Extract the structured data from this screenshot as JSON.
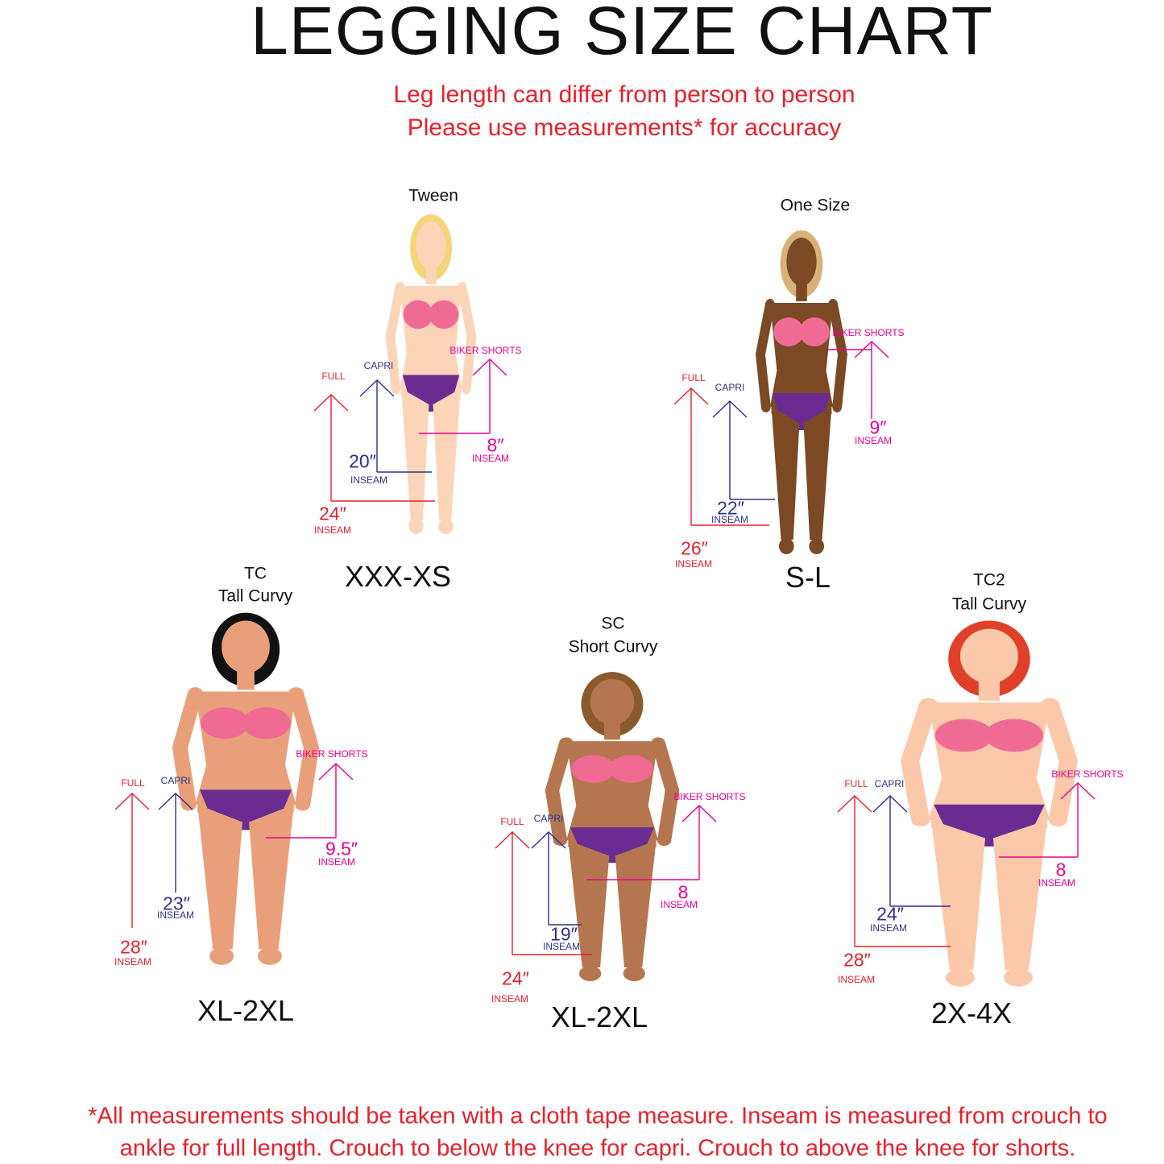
{
  "title": "LEGGING  SIZE CHART",
  "subtitle_lines": [
    "Leg length can differ from person to person",
    "Please use measurements* for accuracy"
  ],
  "colors": {
    "full": "#e8202a",
    "capri": "#2e3192",
    "biker_shorts": "#ec008c",
    "bra": "#f06b94",
    "panty": "#6a2c91"
  },
  "figures": [
    {
      "label_lines": [
        "Tween"
      ],
      "size": "XXX-XS",
      "skin": "#fcd5b8",
      "hair": "#f4d57a",
      "full": {
        "label": "FULL",
        "value": "24″",
        "unit": "INSEAM"
      },
      "capri": {
        "label": "CAPRI",
        "value": "20″",
        "unit": "INSEAM"
      },
      "biker": {
        "label": "BIKER SHORTS",
        "value": "8″",
        "unit": "INSEAM"
      }
    },
    {
      "label_lines": [
        "One Size"
      ],
      "size": "S-L",
      "skin": "#7b4a25",
      "hair": "#d9b07a",
      "full": {
        "label": "FULL",
        "value": "26″",
        "unit": "INSEAM"
      },
      "capri": {
        "label": "CAPRI",
        "value": "22″",
        "unit": "INSEAM"
      },
      "biker": {
        "label": "BIKER SHORTS",
        "value": "9″",
        "unit": "INSEAM"
      }
    },
    {
      "label_lines": [
        "TC",
        "Tall Curvy"
      ],
      "size": "XL-2XL",
      "skin": "#e9a07a",
      "hair": "#111111",
      "full": {
        "label": "FULL",
        "value": "28″",
        "unit": "INSEAM"
      },
      "capri": {
        "label": "CAPRI",
        "value": "23″",
        "unit": "INSEAM"
      },
      "biker": {
        "label": "BIKER SHORTS",
        "value": "9.5″",
        "unit": "INSEAM"
      }
    },
    {
      "label_lines": [
        "SC",
        "Short Curvy"
      ],
      "size": "XL-2XL",
      "skin": "#b5764f",
      "hair": "#8a5a2c",
      "full": {
        "label": "FULL",
        "value": "24″",
        "unit": "INSEAM"
      },
      "capri": {
        "label": "CAPRI",
        "value": "19″",
        "unit": "INSEAM"
      },
      "biker": {
        "label": "BIKER SHORTS",
        "value": "8",
        "unit": "INSEAM"
      }
    },
    {
      "label_lines": [
        "TC2",
        "Tall Curvy"
      ],
      "size": "2X-4X",
      "skin": "#fcc8aa",
      "hair": "#e0402a",
      "full": {
        "label": "FULL",
        "value": "28″",
        "unit": "INSEAM"
      },
      "capri": {
        "label": "CAPRI",
        "value": "24″",
        "unit": "INSEAM"
      },
      "biker": {
        "label": "BIKER SHORTS",
        "value": "8",
        "unit": "INSEAM"
      }
    }
  ],
  "footnote_lines": [
    "*All measurements should be taken with a cloth tape measure. Inseam is measured from crouch to",
    "ankle for full length. Crouch to below the knee for capri. Crouch to above the knee for shorts."
  ]
}
